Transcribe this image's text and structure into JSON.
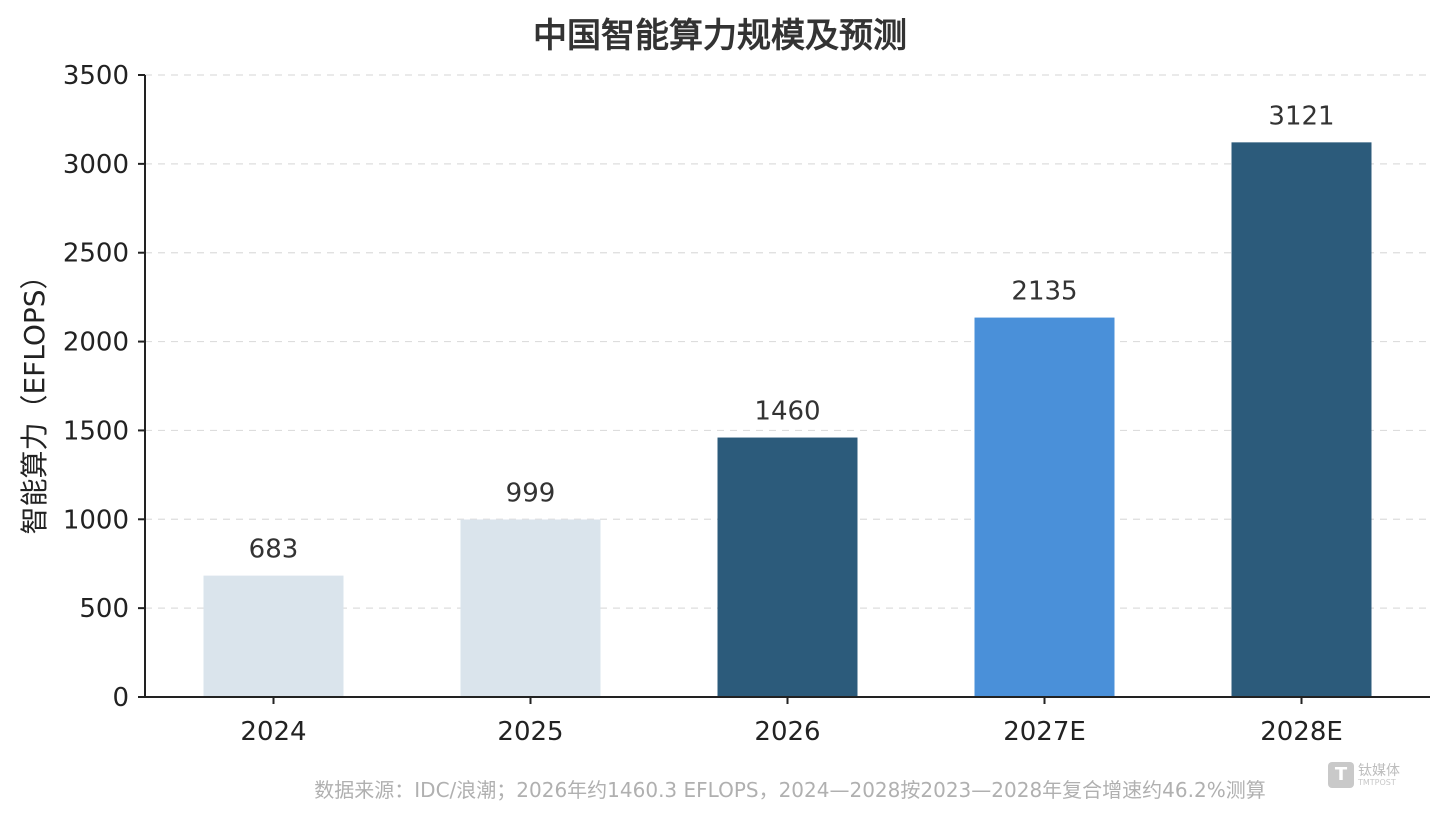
{
  "chart_data": {
    "type": "bar",
    "title": "中国智能算力规模及预测",
    "xlabel": "",
    "ylabel": "智能算力（EFLOPS）",
    "categories": [
      "2024",
      "2025",
      "2026",
      "2027E",
      "2028E"
    ],
    "values": [
      683,
      999,
      1460,
      2135,
      3121
    ],
    "value_labels": [
      "683",
      "999",
      "1460",
      "2135",
      "3121"
    ],
    "bar_colors": [
      "#dae4ec",
      "#dae4ec",
      "#2c5b7b",
      "#4a90d9",
      "#2c5b7b"
    ],
    "ylim": [
      0,
      3500
    ],
    "yticks": [
      0,
      500,
      1000,
      1500,
      2000,
      2500,
      3000,
      3500
    ],
    "grid": true,
    "legend": "none"
  },
  "footnote": "数据来源：IDC/浪潮；2026年约1460.3 EFLOPS，2024—2028按2023—2028年复合增速约46.2%测算",
  "watermark": {
    "text": "钛媒体",
    "sub": "TMTPOST",
    "glyph": "T"
  }
}
